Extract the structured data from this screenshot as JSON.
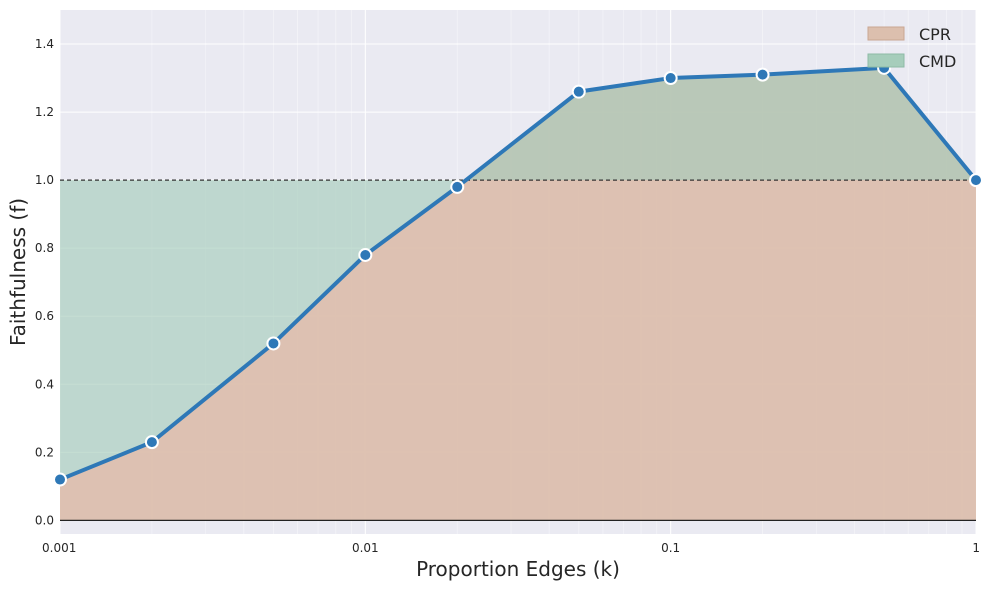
{
  "chart_data": {
    "type": "area",
    "title": "",
    "xlabel": "Proportion Edges (k)",
    "ylabel": "Faithfulness (f)",
    "x_scale": "log",
    "xlim": [
      0.001,
      1
    ],
    "ylim": [
      -0.04,
      1.5
    ],
    "x_ticks": [
      0.001,
      0.01,
      0.1,
      1
    ],
    "x_tick_labels": [
      "0.001",
      "0.01",
      "0.1",
      "1"
    ],
    "y_ticks": [
      0.0,
      0.2,
      0.4,
      0.6,
      0.8,
      1.0,
      1.2,
      1.4
    ],
    "y_tick_labels": [
      "0.0",
      "0.2",
      "0.4",
      "0.6",
      "0.8",
      "1.0",
      "1.2",
      "1.4"
    ],
    "x": [
      0.001,
      0.002,
      0.005,
      0.01,
      0.02,
      0.05,
      0.1,
      0.2,
      0.5,
      1.0
    ],
    "y": [
      0.12,
      0.23,
      0.52,
      0.78,
      0.98,
      1.26,
      1.3,
      1.31,
      1.33,
      1.0
    ],
    "reference_line": 1.0,
    "series": [
      {
        "name": "CPR",
        "color": "#dcbfae"
      },
      {
        "name": "CMD",
        "color": "#a6cdbb"
      }
    ],
    "line_color": "#2e78b7",
    "legend_position": "top-right",
    "grid": true
  }
}
